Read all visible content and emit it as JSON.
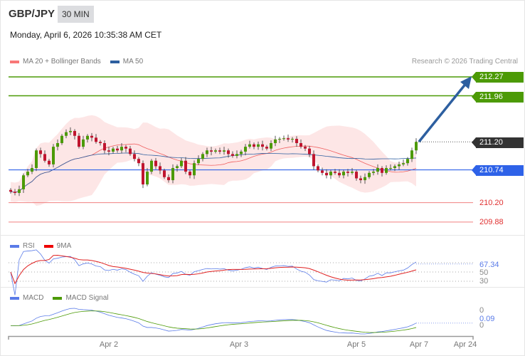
{
  "header": {
    "pair": "GBP/JPY",
    "timeframe": "30 MIN",
    "datetime": "Monday, April 6, 2026 10:35:38 AM CET",
    "credit": "Research © 2026 Trading Central"
  },
  "legend": {
    "ma20": "MA 20 + Bollinger Bands",
    "ma50": "MA 50",
    "rsi": "RSI",
    "rsi_ma": "9MA",
    "macd": "MACD",
    "macd_signal": "MACD Signal"
  },
  "colors": {
    "green": "#4c9a06",
    "blue": "#2e62e8",
    "dark": "#333333",
    "red": "#e03030",
    "arrow": "#2d5fa0",
    "band": "#fde0e0"
  },
  "levels": {
    "r2": "212.27",
    "r1": "211.96",
    "last": "211.20",
    "pivot": "210.74",
    "s1": "210.20",
    "s2": "209.88"
  },
  "rsi_panel": {
    "value": "67.34",
    "l50": "50",
    "l30": "30"
  },
  "macd_panel": {
    "top": "0",
    "value": "0.09",
    "bottom": "0"
  },
  "x_axis": [
    "Apr 2",
    "Apr 3",
    "Apr 5",
    "Apr 7",
    "Apr 24"
  ],
  "chart_data": {
    "type": "candlestick",
    "ylim": [
      209.8,
      212.35
    ],
    "closes": [
      210.38,
      210.36,
      210.42,
      210.65,
      210.71,
      210.77,
      211.06,
      211.0,
      210.89,
      210.83,
      211.12,
      211.18,
      211.3,
      211.36,
      211.38,
      211.3,
      211.12,
      211.24,
      211.3,
      211.27,
      211.2,
      211.18,
      211.06,
      211.04,
      211.09,
      211.06,
      211.12,
      211.09,
      211.0,
      210.92,
      210.85,
      210.5,
      210.71,
      210.89,
      210.8,
      210.73,
      210.62,
      210.57,
      210.77,
      210.8,
      210.89,
      210.71,
      210.65,
      210.85,
      210.92,
      211.0,
      211.06,
      211.04,
      211.06,
      211.04,
      211.06,
      211.0,
      210.97,
      211.0,
      211.04,
      211.12,
      211.16,
      211.12,
      211.16,
      211.12,
      211.09,
      211.18,
      211.24,
      211.25,
      211.26,
      211.24,
      211.25,
      211.18,
      211.12,
      211.09,
      211.0,
      210.8,
      210.73,
      210.69,
      210.65,
      210.71,
      210.69,
      210.65,
      210.71,
      210.69,
      210.71,
      210.6,
      210.57,
      210.62,
      210.69,
      210.71,
      210.77,
      210.69,
      210.77,
      210.77,
      210.8,
      210.83,
      210.85,
      210.92,
      211.06,
      211.2
    ]
  }
}
